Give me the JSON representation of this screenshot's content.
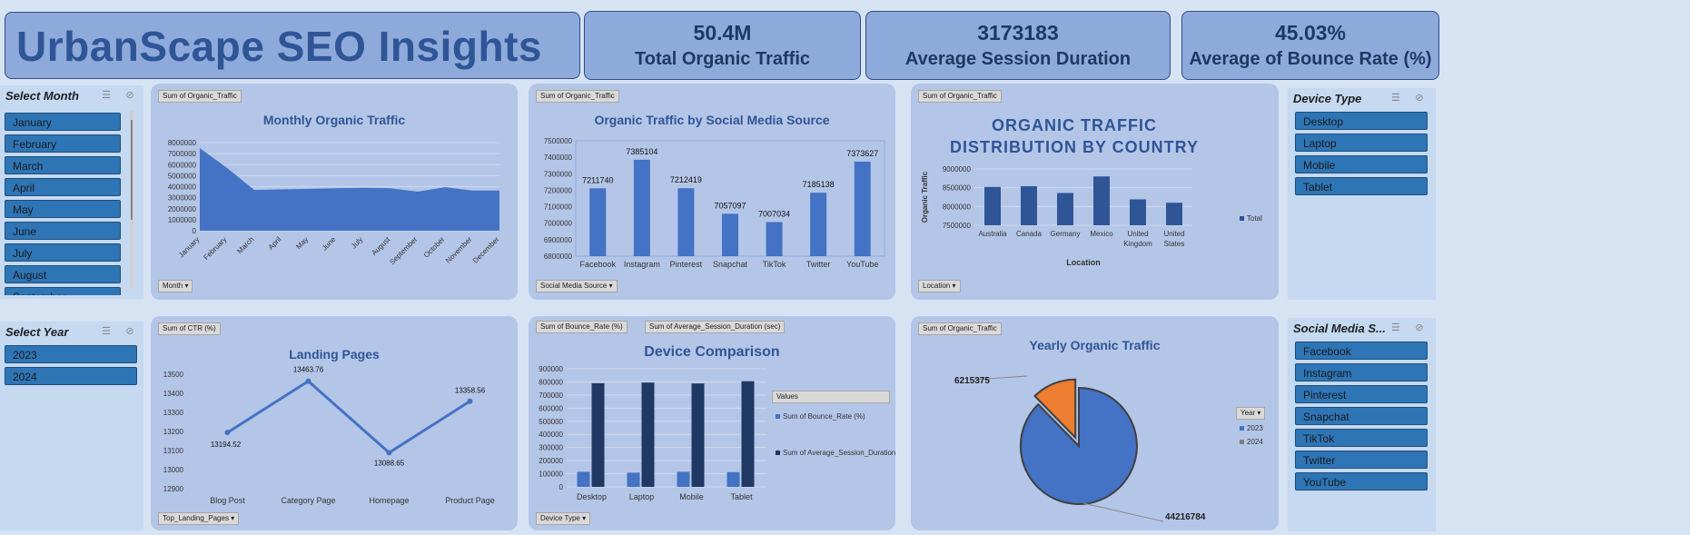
{
  "header": {
    "title": "UrbanScape SEO Insights"
  },
  "kpis": [
    {
      "value": "50.4M",
      "label": "Total Organic Traffic"
    },
    {
      "value": "3173183",
      "label": "Average Session Duration"
    },
    {
      "value": "45.03%",
      "label": "Average of Bounce Rate (%)"
    }
  ],
  "slicers": {
    "month": {
      "title": "Select Month",
      "items": [
        "January",
        "February",
        "March",
        "April",
        "May",
        "June",
        "July",
        "August",
        "September"
      ]
    },
    "year": {
      "title": "Select Year",
      "items": [
        "2023",
        "2024"
      ]
    },
    "device": {
      "title": "Device Type",
      "items": [
        "Desktop",
        "Laptop",
        "Mobile",
        "Tablet"
      ]
    },
    "social": {
      "title": "Social Media S...",
      "items": [
        "Facebook",
        "Instagram",
        "Pinterest",
        "Snapchat",
        "TikTok",
        "Twitter",
        "YouTube"
      ]
    }
  },
  "icons": {
    "multiselect": "multiselect-icon",
    "clear_filter": "clear-filter-icon"
  },
  "colors": {
    "accent": "#4472c4",
    "dark": "#203864",
    "orange": "#ed7d31",
    "title": "#2f5597"
  },
  "chart_data": [
    {
      "type": "area",
      "title": "Monthly Organic Traffic",
      "field_button": "Sum of Organic_Traffic",
      "axis_button": "Month",
      "categories": [
        "January",
        "February",
        "March",
        "April",
        "May",
        "June",
        "July",
        "August",
        "September",
        "October",
        "November",
        "December"
      ],
      "values": [
        7500000,
        5700000,
        3700000,
        3750000,
        3800000,
        3850000,
        3900000,
        3850000,
        3550000,
        3950000,
        3650000,
        3650000
      ],
      "yticks": [
        "8000000",
        "7000000",
        "6000000",
        "5000000",
        "4000000",
        "3000000",
        "2000000",
        "1000000",
        "0"
      ],
      "ylim": [
        0,
        8000000
      ]
    },
    {
      "type": "bar",
      "title": "Organic Traffic by Social Media Source",
      "field_button": "Sum of Organic_Traffic",
      "axis_button": "Social Media Source",
      "categories": [
        "Facebook",
        "Instagram",
        "Pinterest",
        "Snapchat",
        "TikTok",
        "Twitter",
        "YouTube"
      ],
      "values": [
        7211740,
        7385104,
        7212419,
        7057097,
        7007034,
        7185138,
        7373627
      ],
      "yticks": [
        "7500000",
        "7400000",
        "7300000",
        "7200000",
        "7100000",
        "7000000",
        "6900000",
        "6800000"
      ],
      "ylim": [
        6800000,
        7500000
      ]
    },
    {
      "type": "bar",
      "title": "ORGANIC TRAFFIC DISTRIBUTION BY COUNTRY",
      "field_button": "Sum of Organic_Traffic",
      "axis_button": "Location",
      "xlabel": "Location",
      "ylabel": "Organic Traffic",
      "categories": [
        "Australia",
        "Canada",
        "Germany",
        "Mexico",
        "United Kingdom",
        "United States"
      ],
      "values": [
        8520000,
        8540000,
        8360000,
        8800000,
        8190000,
        8100000
      ],
      "series": [
        {
          "name": "Total"
        }
      ],
      "yticks": [
        "9000000",
        "8500000",
        "8000000",
        "7500000"
      ],
      "ylim": [
        7500000,
        9000000
      ]
    },
    {
      "type": "line",
      "title": "Landing Pages",
      "field_button": "Sum of CTR (%)",
      "axis_button": "Top_Landing_Pages",
      "categories": [
        "Blog Post",
        "Category Page",
        "Homepage",
        "Product Page"
      ],
      "values": [
        13194.52,
        13463.76,
        13088.65,
        13358.56
      ],
      "labels": [
        "13194.52",
        "13463.76",
        "13088.65",
        "13358.56"
      ],
      "yticks": [
        "13500",
        "13400",
        "13300",
        "13200",
        "13100",
        "13000",
        "12900"
      ],
      "ylim": [
        12900,
        13500
      ]
    },
    {
      "type": "bar",
      "title": "Device Comparison",
      "field_buttons": [
        "Sum of Bounce_Rate (%)",
        "Sum of Average_Session_Duration (sec)"
      ],
      "axis_button": "Device Type",
      "legend_title": "Values",
      "categories": [
        "Desktop",
        "Laptop",
        "Mobile",
        "Tablet"
      ],
      "series": [
        {
          "name": "Sum of Bounce_Rate (%)",
          "values": [
            115000,
            108000,
            115000,
            112000
          ]
        },
        {
          "name": "Sum of Average_Session_Duration (sec)",
          "values": [
            790000,
            795000,
            788000,
            805000
          ]
        }
      ],
      "yticks": [
        "900000",
        "800000",
        "700000",
        "600000",
        "500000",
        "400000",
        "300000",
        "200000",
        "100000",
        "0"
      ],
      "ylim": [
        0,
        900000
      ]
    },
    {
      "type": "pie",
      "title": "Yearly Organic Traffic",
      "field_button": "Sum of Organic_Traffic",
      "legend_title": "Year",
      "series": [
        {
          "name": "2023",
          "value": 44216784,
          "label": "44216784"
        },
        {
          "name": "2024",
          "value": 6215375,
          "label": "6215375"
        }
      ]
    }
  ]
}
